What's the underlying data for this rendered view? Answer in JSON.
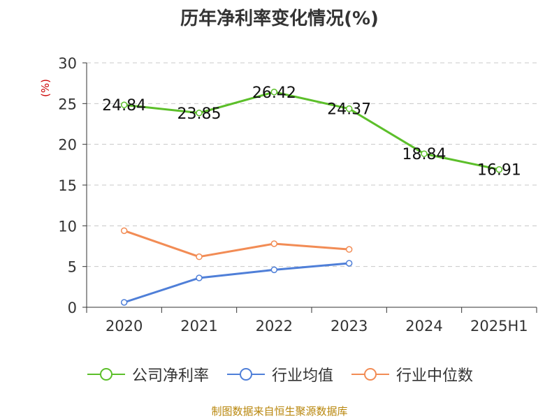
{
  "chart_data": {
    "type": "line",
    "title": "历年净利率变化情况(%)",
    "ylabel": "(%)",
    "xlabel": "",
    "categories": [
      "2020",
      "2021",
      "2022",
      "2023",
      "2024",
      "2025H1"
    ],
    "ylim": [
      0,
      30
    ],
    "yticks": [
      "0",
      "5",
      "10",
      "15",
      "20",
      "25",
      "30"
    ],
    "grid": true,
    "legend_position": "bottom",
    "series": [
      {
        "name": "公司净利率",
        "color": "#5cbf2a",
        "values": [
          24.84,
          23.85,
          26.42,
          24.37,
          18.84,
          16.91
        ],
        "labels": [
          "24.84",
          "23.85",
          "26.42",
          "24.37",
          "18.84",
          "16.91"
        ]
      },
      {
        "name": "行业均值",
        "color": "#4f7fd8",
        "values": [
          0.6,
          3.6,
          4.6,
          5.4,
          null,
          null
        ],
        "labels": []
      },
      {
        "name": "行业中位数",
        "color": "#f28c55",
        "values": [
          9.4,
          6.2,
          7.8,
          7.1,
          null,
          null
        ],
        "labels": []
      }
    ]
  },
  "source": "制图数据来自恒生聚源数据库"
}
